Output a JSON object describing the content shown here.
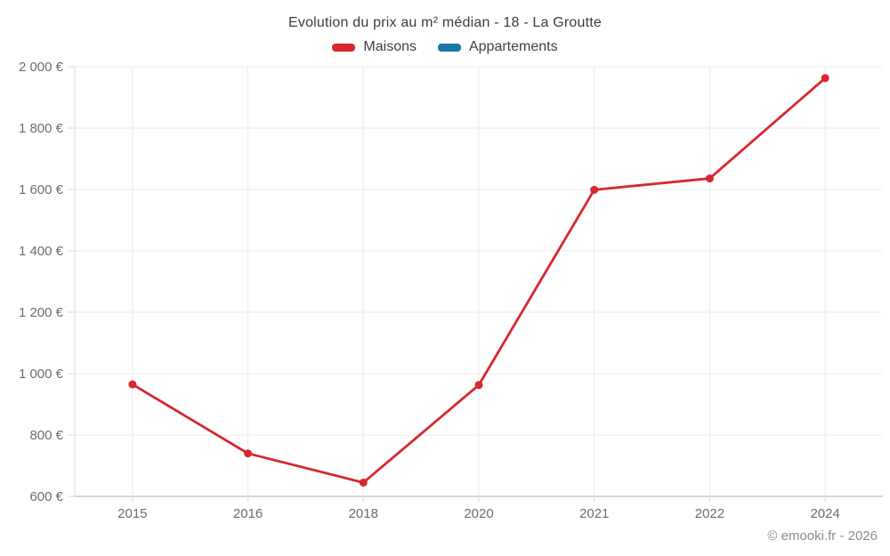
{
  "chart_data": {
    "type": "line",
    "title": "Evolution du prix au m² médian - 18 - La Groutte",
    "categories": [
      "2015",
      "2016",
      "2018",
      "2020",
      "2021",
      "2022",
      "2024"
    ],
    "series": [
      {
        "name": "Maisons",
        "color": "#d7282f",
        "values": [
          965,
          740,
          645,
          963,
          1599,
          1636,
          1963
        ]
      },
      {
        "name": "Appartements",
        "color": "#1c76a5",
        "values": null
      }
    ],
    "xlabel": "",
    "ylabel": "",
    "ylim": [
      600,
      2000
    ],
    "ytick_interval": 200,
    "ytick_labels": [
      "600 €",
      "800 €",
      "1 000 €",
      "1 200 €",
      "1 400 €",
      "1 600 €",
      "1 800 €",
      "2 000 €"
    ],
    "currency_suffix": "€",
    "grid": true,
    "legend_position": "top"
  },
  "footer": {
    "attribution": "© emooki.fr - 2026"
  },
  "colors": {
    "series_red": "#d7282f",
    "series_blue": "#1c76a5",
    "gridline": "#ebebeb",
    "axis_line": "#dedede",
    "bottom_axis_line": "#c9c9c9",
    "tick_mark": "#d9d9d9",
    "tick_label_text": "#6d6d6d",
    "title_text": "#3c3c3c",
    "legend_text": "#3f3f3f",
    "attribution_text": "#8c8c8c",
    "background": "#ffffff"
  }
}
